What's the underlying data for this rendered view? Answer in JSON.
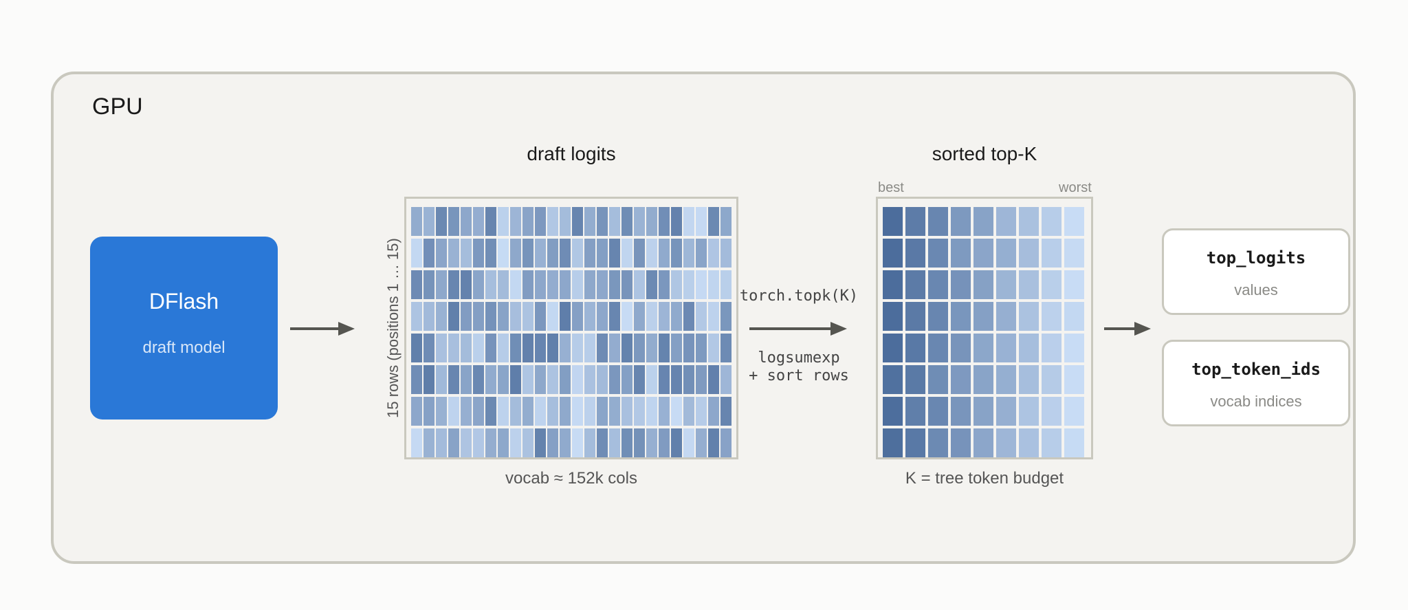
{
  "gpu": {
    "label": "GPU"
  },
  "dflash": {
    "title": "DFlash",
    "subtitle": "draft model"
  },
  "draft_logits": {
    "title": "draft logits",
    "row_label": "15 rows (positions 1 … 15)",
    "col_caption": "vocab  ≈  152k cols"
  },
  "topk_op": {
    "call": "torch.topk(K)",
    "note_line1": "logsumexp",
    "note_line2": "+ sort rows"
  },
  "sorted_topk": {
    "title": "sorted top-K",
    "best_label": "best",
    "worst_label": "worst",
    "caption": "K = tree token budget"
  },
  "outputs": [
    {
      "title": "top_logits",
      "subtitle": "values"
    },
    {
      "title": "top_token_ids",
      "subtitle": "vocab indices"
    }
  ],
  "colors": {
    "dflash_fill": "#2a78d7",
    "arrow": "#555550",
    "cell_dark": "#4c6d9c",
    "cell_light": "#c8dcf5"
  }
}
